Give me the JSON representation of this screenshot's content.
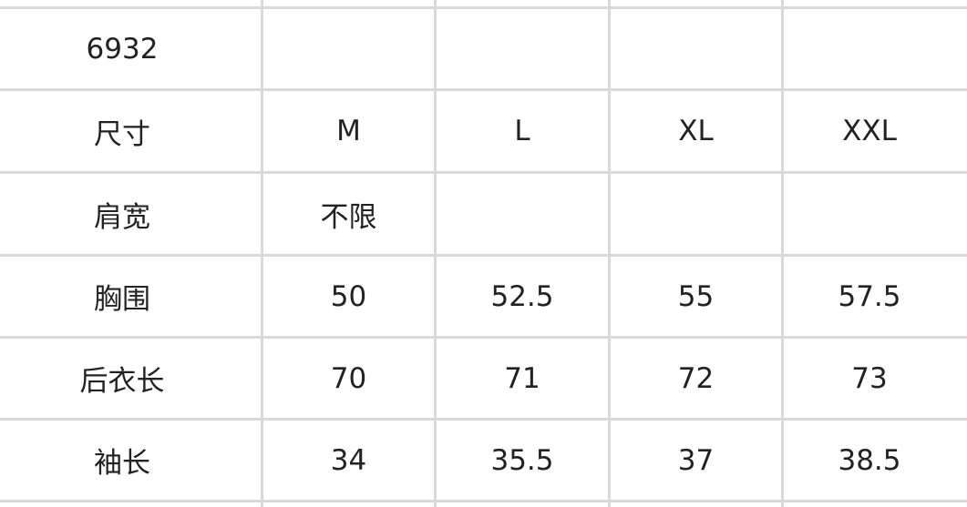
{
  "table": {
    "rows": [
      [
        "6932",
        "",
        "",
        "",
        ""
      ],
      [
        "尺寸",
        "M",
        "L",
        "XL",
        "XXL"
      ],
      [
        "肩宽",
        "不限",
        "",
        "",
        ""
      ],
      [
        "胸围",
        "50",
        "52.5",
        "55",
        "57.5"
      ],
      [
        "后衣长",
        "70",
        "71",
        "72",
        "73"
      ],
      [
        "袖长",
        "34",
        "35.5",
        "37",
        "38.5"
      ]
    ]
  }
}
